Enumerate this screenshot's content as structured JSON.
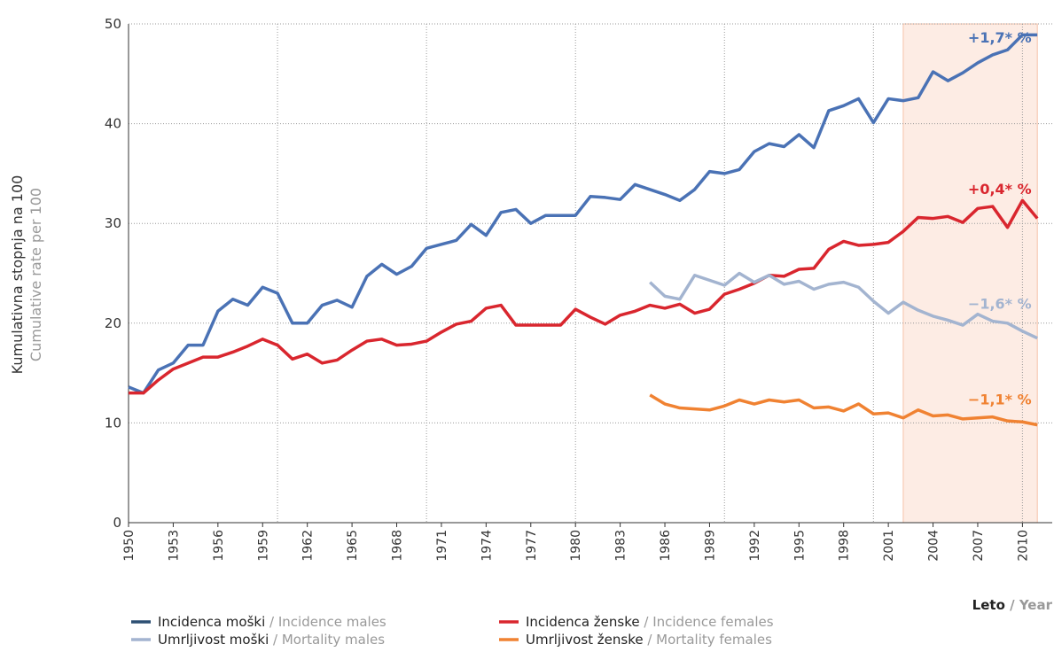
{
  "chart_data": {
    "type": "line",
    "ylabel": [
      "Kumulativna stopnja na 100",
      "Cumulative rate per 100"
    ],
    "xlabel": [
      "Leto",
      " / Year"
    ],
    "x": [
      1950,
      1951,
      1952,
      1953,
      1954,
      1955,
      1956,
      1957,
      1958,
      1959,
      1960,
      1961,
      1962,
      1963,
      1964,
      1965,
      1966,
      1967,
      1968,
      1969,
      1970,
      1971,
      1972,
      1973,
      1974,
      1975,
      1976,
      1977,
      1978,
      1979,
      1980,
      1981,
      1982,
      1983,
      1984,
      1985,
      1986,
      1987,
      1988,
      1989,
      1990,
      1991,
      1992,
      1993,
      1994,
      1995,
      1996,
      1997,
      1998,
      1999,
      2000,
      2001,
      2002,
      2003,
      2004,
      2005,
      2006,
      2007,
      2008,
      2009,
      2010,
      2011
    ],
    "xlim": [
      1950,
      2012
    ],
    "xticks": [
      1950,
      1953,
      1956,
      1959,
      1962,
      1965,
      1968,
      1971,
      1974,
      1977,
      1980,
      1983,
      1986,
      1989,
      1992,
      1995,
      1998,
      2001,
      2004,
      2007,
      2010
    ],
    "xgrid": [
      1960,
      1970,
      1980,
      1990,
      2000,
      2010
    ],
    "ylim": [
      0,
      50
    ],
    "yticks": [
      0,
      10,
      20,
      30,
      40,
      50
    ],
    "grid": true,
    "highlight": [
      2002,
      2011
    ],
    "series": [
      {
        "name": "Incidenca moški / Incidence males",
        "color": "#4a72b5",
        "trend": "+1,7* %",
        "values": [
          13.6,
          13.0,
          15.3,
          16.0,
          17.8,
          17.8,
          21.2,
          22.4,
          21.8,
          23.6,
          23.0,
          20.0,
          20.0,
          21.8,
          22.3,
          21.6,
          24.7,
          25.9,
          24.9,
          25.7,
          27.5,
          27.9,
          28.3,
          29.9,
          28.8,
          31.1,
          31.4,
          30.0,
          30.8,
          30.8,
          30.8,
          32.7,
          32.6,
          32.4,
          33.9,
          33.4,
          32.9,
          32.3,
          33.4,
          35.2,
          35.0,
          35.4,
          37.2,
          38.0,
          37.7,
          38.9,
          37.6,
          41.3,
          41.8,
          42.5,
          40.1,
          42.5,
          42.3,
          42.6,
          45.2,
          44.3,
          45.1,
          46.1,
          46.9,
          47.4,
          48.9,
          48.9
        ]
      },
      {
        "name": "Incidenca ženske / Incidence females",
        "color": "#d9262e",
        "trend": "+0,4* %",
        "values": [
          13.0,
          13.0,
          14.3,
          15.4,
          16.0,
          16.6,
          16.6,
          17.1,
          17.7,
          18.4,
          17.8,
          16.4,
          16.9,
          16.0,
          16.3,
          17.3,
          18.2,
          18.4,
          17.8,
          17.9,
          18.2,
          19.1,
          19.9,
          20.2,
          21.5,
          21.8,
          19.8,
          19.8,
          19.8,
          19.8,
          21.4,
          20.6,
          19.9,
          20.8,
          21.2,
          21.8,
          21.5,
          21.9,
          21.0,
          21.4,
          22.9,
          23.4,
          24.0,
          24.8,
          24.7,
          25.4,
          25.5,
          27.4,
          28.2,
          27.8,
          27.9,
          28.1,
          29.2,
          30.6,
          30.5,
          30.7,
          30.1,
          31.5,
          31.7,
          29.6,
          32.3,
          30.5
        ]
      },
      {
        "name": "Umrljivost moški / Mortality males",
        "color": "#a3b4d0",
        "trend": "−1,6* %",
        "values": [
          null,
          null,
          null,
          null,
          null,
          null,
          null,
          null,
          null,
          null,
          null,
          null,
          null,
          null,
          null,
          null,
          null,
          null,
          null,
          null,
          null,
          null,
          null,
          null,
          null,
          null,
          null,
          null,
          null,
          null,
          null,
          null,
          null,
          null,
          null,
          24.1,
          22.7,
          22.4,
          24.8,
          24.3,
          23.8,
          25.0,
          24.1,
          24.8,
          23.9,
          24.2,
          23.4,
          23.9,
          24.1,
          23.6,
          22.2,
          21.0,
          22.1,
          21.3,
          20.7,
          20.3,
          19.8,
          20.9,
          20.2,
          20.0,
          19.2,
          18.5
        ]
      },
      {
        "name": "Umrljivost ženske / Mortality females",
        "color": "#f08232",
        "trend": "−1,1* %",
        "values": [
          null,
          null,
          null,
          null,
          null,
          null,
          null,
          null,
          null,
          null,
          null,
          null,
          null,
          null,
          null,
          null,
          null,
          null,
          null,
          null,
          null,
          null,
          null,
          null,
          null,
          null,
          null,
          null,
          null,
          null,
          null,
          null,
          null,
          null,
          null,
          12.8,
          11.9,
          11.5,
          11.4,
          11.3,
          11.7,
          12.3,
          11.9,
          12.3,
          12.1,
          12.3,
          11.5,
          11.6,
          11.2,
          11.9,
          10.9,
          11.0,
          10.5,
          11.3,
          10.7,
          10.8,
          10.4,
          10.5,
          10.6,
          10.2,
          10.1,
          9.8
        ]
      }
    ]
  }
}
